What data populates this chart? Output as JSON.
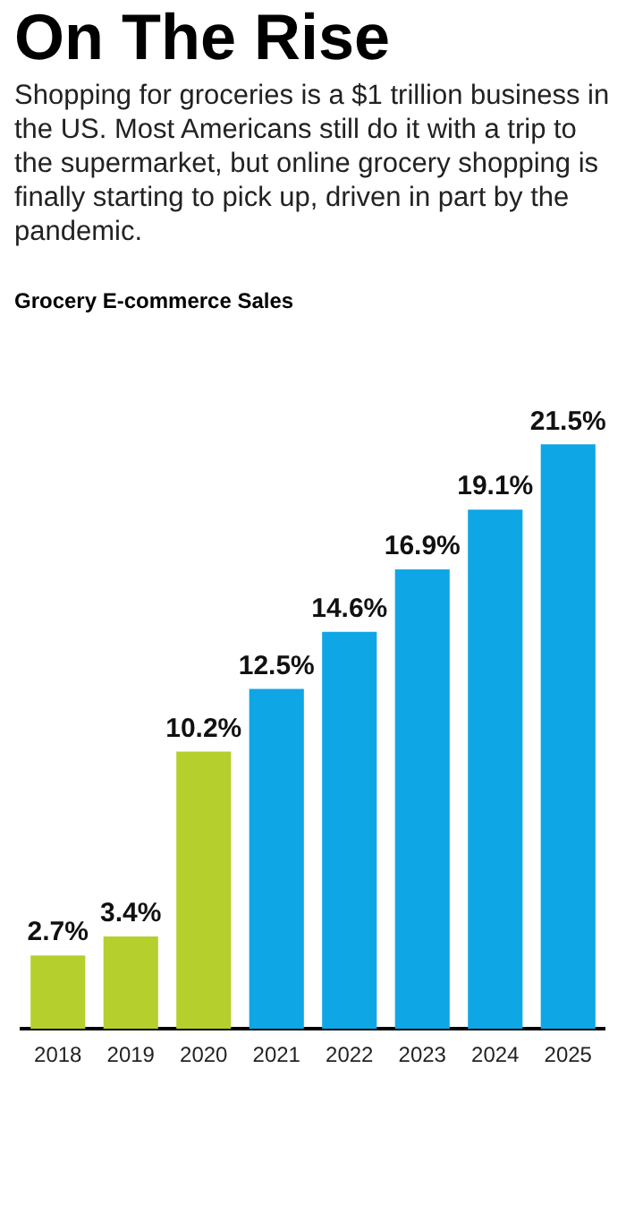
{
  "chart_data": {
    "type": "bar",
    "title": "On The Rise",
    "subtitle": "Shopping for groceries is a $1 trillion business in the US. Most Americans still do it with a trip to the supermarket, but online grocery shopping is finally starting to pick up, driven in part by the pandemic.",
    "annotations": [
      "Grocery E-commerce Sales"
    ],
    "categories": [
      "2018",
      "2019",
      "2020",
      "2021",
      "2022",
      "2023",
      "2024",
      "2025"
    ],
    "values": [
      2.7,
      3.4,
      10.2,
      12.5,
      14.6,
      16.9,
      19.1,
      21.5
    ],
    "colors": [
      "#b5cf2c",
      "#b5cf2c",
      "#b5cf2c",
      "#0fa6e6",
      "#0fa6e6",
      "#0fa6e6",
      "#0fa6e6",
      "#0fa6e6"
    ],
    "value_labels": [
      "2.7%",
      "3.4%",
      "10.2%",
      "12.5%",
      "14.6%",
      "16.9%",
      "19.1%",
      "21.5%"
    ],
    "grid": false,
    "legend": false
  }
}
